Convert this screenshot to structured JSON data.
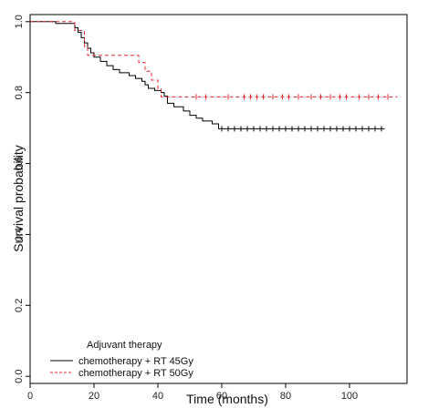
{
  "chart_data": {
    "type": "line",
    "subtype": "kaplan-meier step curve with censor marks",
    "xlabel": "Time (months)",
    "ylabel": "Survival probability",
    "xlim": [
      0,
      118
    ],
    "ylim": [
      -0.02,
      1.02
    ],
    "xticks": [
      0,
      20,
      40,
      60,
      80,
      100
    ],
    "yticks": [
      0.0,
      0.2,
      0.4,
      0.6,
      0.8,
      1.0
    ],
    "ytick_labels": [
      "0.0",
      "0.2",
      "0.4",
      "0.6",
      "0.8",
      "1.0"
    ],
    "grid": false,
    "legend": {
      "title": "Adjuvant therapy",
      "placement": "bottom-left"
    },
    "series": [
      {
        "name": "chemotherapy + RT 45Gy",
        "color": "#000000",
        "line_style": "solid",
        "steps": [
          [
            0,
            1.0
          ],
          [
            8,
            0.995
          ],
          [
            14,
            0.983
          ],
          [
            15,
            0.97
          ],
          [
            16,
            0.955
          ],
          [
            17,
            0.94
          ],
          [
            18,
            0.925
          ],
          [
            19,
            0.912
          ],
          [
            20,
            0.9
          ],
          [
            22,
            0.888
          ],
          [
            24,
            0.876
          ],
          [
            26,
            0.865
          ],
          [
            28,
            0.856
          ],
          [
            31,
            0.848
          ],
          [
            33,
            0.84
          ],
          [
            35,
            0.832
          ],
          [
            36,
            0.822
          ],
          [
            37,
            0.812
          ],
          [
            39,
            0.806
          ],
          [
            41,
            0.8
          ],
          [
            42,
            0.79
          ],
          [
            43,
            0.77
          ],
          [
            45,
            0.76
          ],
          [
            48,
            0.748
          ],
          [
            50,
            0.736
          ],
          [
            52,
            0.728
          ],
          [
            54,
            0.72
          ],
          [
            57,
            0.712
          ],
          [
            59,
            0.698
          ],
          [
            111,
            0.698
          ]
        ],
        "censor_times": [
          60,
          62,
          64,
          66,
          68,
          70,
          72,
          74,
          76,
          78,
          80,
          82,
          84,
          86,
          88,
          90,
          92,
          94,
          96,
          98,
          100,
          102,
          104,
          106,
          108,
          110
        ]
      },
      {
        "name": "chemotherapy + RT 50Gy",
        "color": "#e8262a",
        "line_style": "dashed",
        "steps": [
          [
            0,
            1.0
          ],
          [
            14,
            0.975
          ],
          [
            17,
            0.93
          ],
          [
            18,
            0.905
          ],
          [
            34,
            0.885
          ],
          [
            36,
            0.86
          ],
          [
            38,
            0.835
          ],
          [
            40,
            0.81
          ],
          [
            41,
            0.788
          ],
          [
            115,
            0.788
          ]
        ],
        "censor_times": [
          52,
          55,
          62,
          67,
          69,
          71,
          73,
          76,
          79,
          81,
          84,
          88,
          91,
          94,
          97,
          99,
          103,
          106,
          109,
          112
        ]
      }
    ]
  }
}
